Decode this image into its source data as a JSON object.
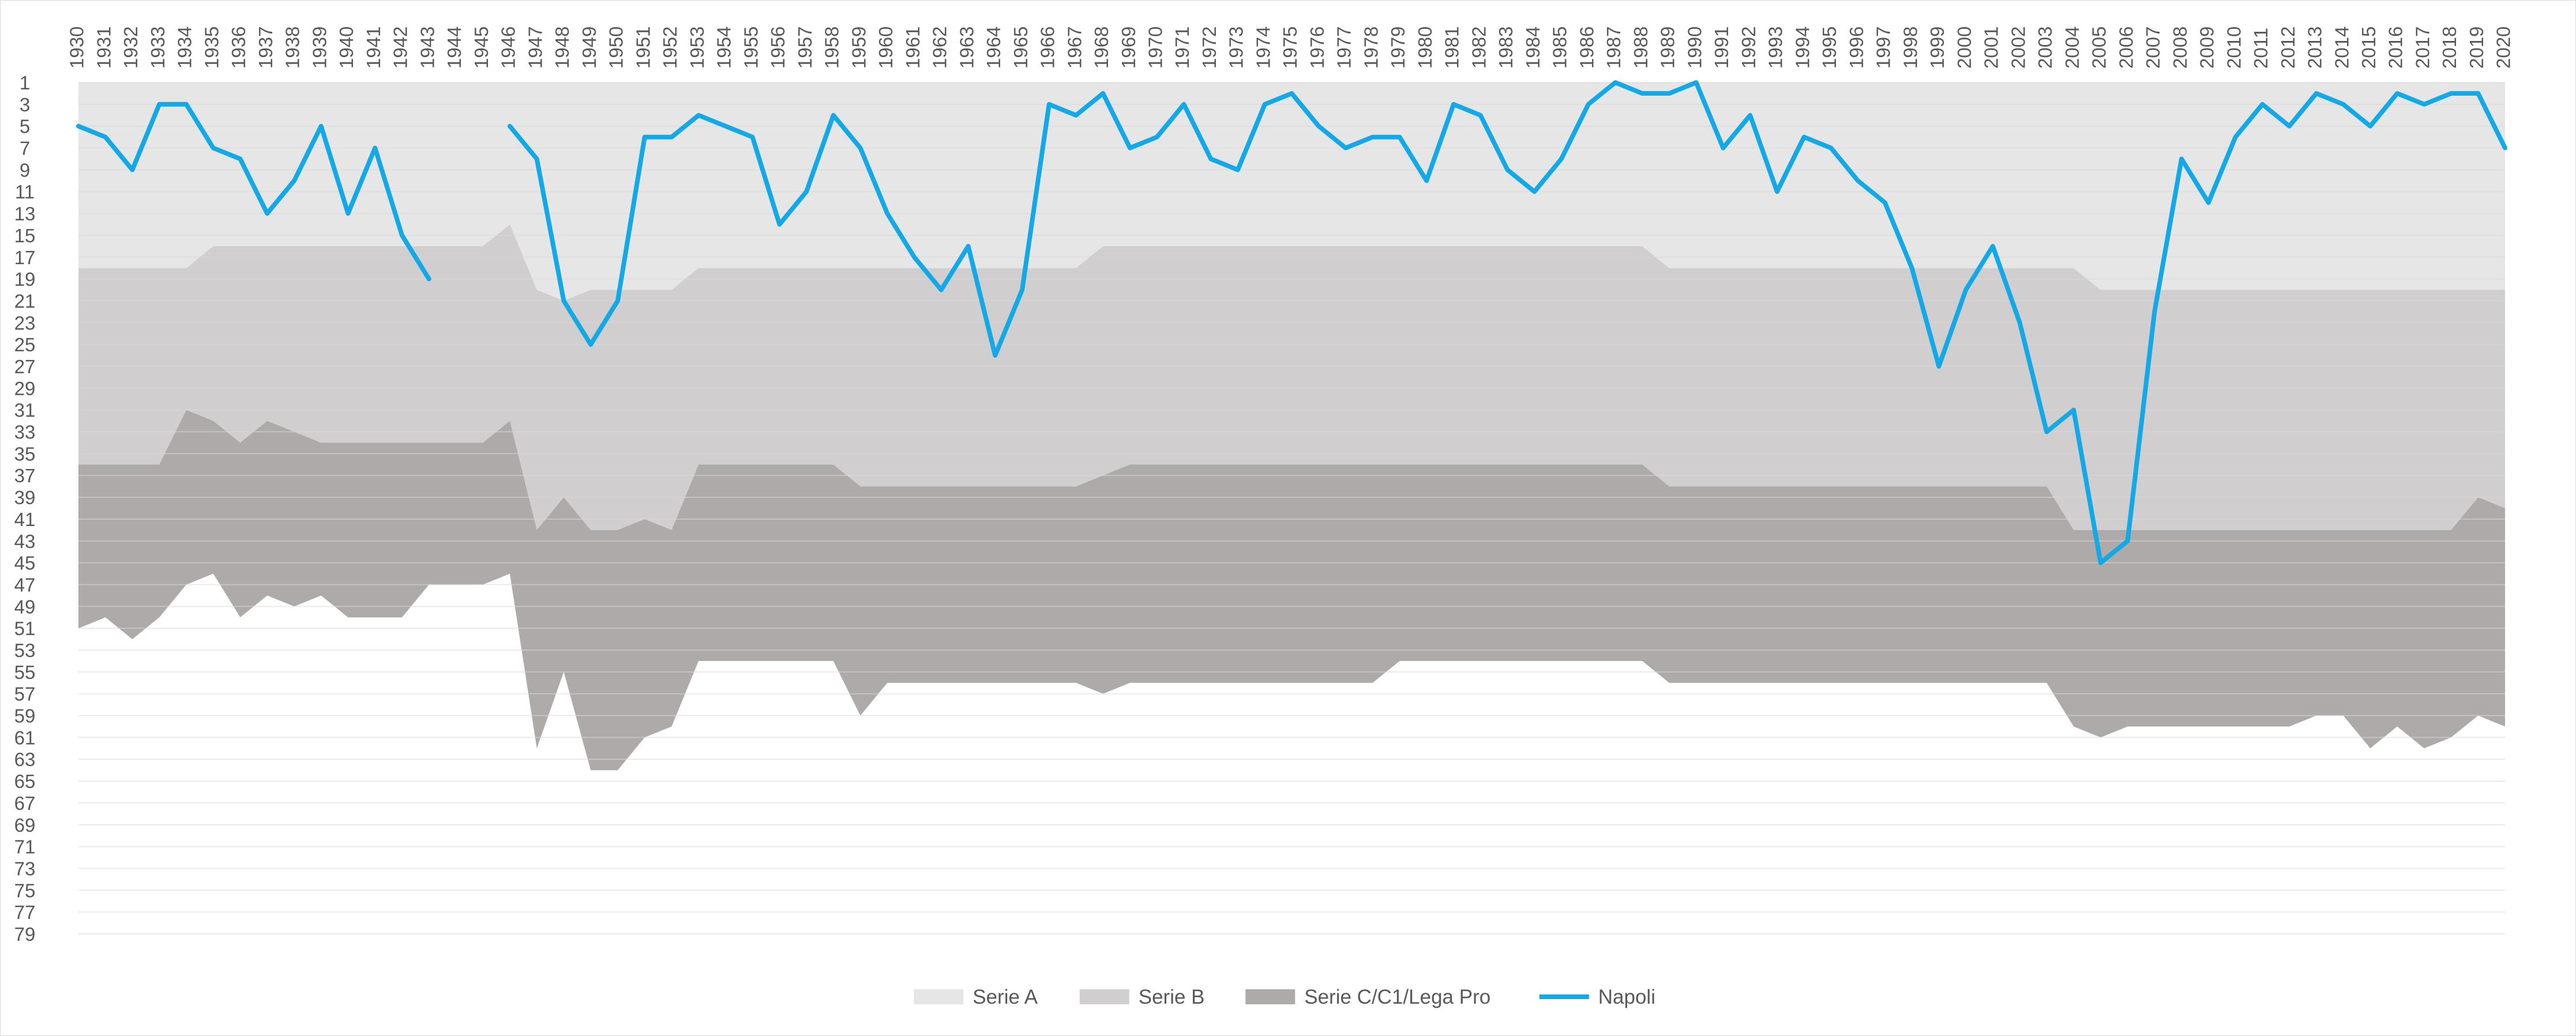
{
  "chart_data": {
    "type": "area",
    "title": "",
    "xlabel": "",
    "ylabel": "",
    "y_axis_inverted": true,
    "ylim": [
      1,
      79
    ],
    "y_ticks": [
      1,
      3,
      5,
      7,
      9,
      11,
      13,
      15,
      17,
      19,
      21,
      23,
      25,
      27,
      29,
      31,
      33,
      35,
      37,
      39,
      41,
      43,
      45,
      47,
      49,
      51,
      53,
      55,
      57,
      59,
      61,
      63,
      65,
      67,
      69,
      71,
      73,
      75,
      77,
      79
    ],
    "gridlines": true,
    "legend_position": "bottom",
    "x": [
      "1930",
      "1931",
      "1932",
      "1933",
      "1934",
      "1935",
      "1936",
      "1937",
      "1938",
      "1939",
      "1940",
      "1941",
      "1942",
      "1943",
      "1944",
      "1945",
      "1946",
      "1947",
      "1948",
      "1949",
      "1950",
      "1951",
      "1952",
      "1953",
      "1954",
      "1955",
      "1956",
      "1957",
      "1958",
      "1959",
      "1960",
      "1961",
      "1962",
      "1963",
      "1964",
      "1965",
      "1966",
      "1967",
      "1968",
      "1969",
      "1970",
      "1971",
      "1972",
      "1973",
      "1974",
      "1975",
      "1976",
      "1977",
      "1978",
      "1979",
      "1980",
      "1981",
      "1982",
      "1983",
      "1984",
      "1985",
      "1986",
      "1987",
      "1988",
      "1989",
      "1990",
      "1991",
      "1992",
      "1993",
      "1994",
      "1995",
      "1996",
      "1997",
      "1998",
      "1999",
      "2000",
      "2001",
      "2002",
      "2003",
      "2004",
      "2005",
      "2006",
      "2007",
      "2008",
      "2009",
      "2010",
      "2011",
      "2012",
      "2013",
      "2014",
      "2015",
      "2016",
      "2017",
      "2018",
      "2019",
      "2020"
    ],
    "series": [
      {
        "name": "Serie A",
        "kind": "area",
        "color": "#e7e6e6",
        "values": [
          18,
          18,
          18,
          18,
          18,
          16,
          16,
          16,
          16,
          16,
          16,
          16,
          16,
          16,
          16,
          16,
          14,
          20,
          21,
          20,
          20,
          20,
          20,
          18,
          18,
          18,
          18,
          18,
          18,
          18,
          18,
          18,
          18,
          18,
          18,
          18,
          18,
          18,
          16,
          16,
          16,
          16,
          16,
          16,
          16,
          16,
          16,
          16,
          16,
          16,
          16,
          16,
          16,
          16,
          16,
          16,
          16,
          16,
          16,
          18,
          18,
          18,
          18,
          18,
          18,
          18,
          18,
          18,
          18,
          18,
          18,
          18,
          18,
          18,
          18,
          20,
          20,
          20,
          20,
          20,
          20,
          20,
          20,
          20,
          20,
          20,
          20,
          20,
          20,
          20,
          20
        ]
      },
      {
        "name": "Serie B",
        "kind": "area",
        "color": "#d0cece",
        "values": [
          36,
          36,
          36,
          36,
          31,
          32,
          34,
          32,
          33,
          34,
          34,
          34,
          34,
          34,
          34,
          34,
          32,
          42,
          39,
          42,
          42,
          41,
          42,
          36,
          36,
          36,
          36,
          36,
          36,
          38,
          38,
          38,
          38,
          38,
          38,
          38,
          38,
          38,
          37,
          36,
          36,
          36,
          36,
          36,
          36,
          36,
          36,
          36,
          36,
          36,
          36,
          36,
          36,
          36,
          36,
          36,
          36,
          36,
          36,
          38,
          38,
          38,
          38,
          38,
          38,
          38,
          38,
          38,
          38,
          38,
          38,
          38,
          38,
          38,
          42,
          42,
          42,
          42,
          42,
          42,
          42,
          42,
          42,
          42,
          42,
          42,
          42,
          42,
          42,
          39,
          40
        ]
      },
      {
        "name": "Serie C/C1/Lega Pro",
        "kind": "area",
        "color": "#aeaaaa",
        "values": [
          51,
          50,
          52,
          50,
          47,
          46,
          50,
          48,
          49,
          48,
          50,
          50,
          50,
          47,
          47,
          47,
          46,
          62,
          55,
          64,
          64,
          61,
          60,
          54,
          54,
          54,
          54,
          54,
          54,
          59,
          56,
          56,
          56,
          56,
          56,
          56,
          56,
          56,
          57,
          56,
          56,
          56,
          56,
          56,
          56,
          56,
          56,
          56,
          56,
          54,
          54,
          54,
          54,
          54,
          54,
          54,
          54,
          54,
          54,
          56,
          56,
          56,
          56,
          56,
          56,
          56,
          56,
          56,
          56,
          56,
          56,
          56,
          56,
          56,
          60,
          61,
          60,
          60,
          60,
          60,
          60,
          60,
          60,
          59,
          59,
          62,
          60,
          62,
          61,
          59,
          60
        ]
      },
      {
        "name": "Napoli",
        "kind": "line",
        "color": "#12a9e6",
        "values": [
          5,
          6,
          9,
          3,
          3,
          7,
          8,
          13,
          10,
          5,
          13,
          7,
          15,
          19,
          null,
          null,
          5,
          8,
          21,
          25,
          21,
          6,
          6,
          4,
          5,
          6,
          14,
          11,
          4,
          7,
          13,
          17,
          20,
          16,
          26,
          20,
          3,
          4,
          2,
          7,
          6,
          3,
          8,
          9,
          3,
          2,
          5,
          7,
          6,
          6,
          10,
          3,
          4,
          9,
          11,
          8,
          3,
          1,
          2,
          2,
          1,
          7,
          4,
          11,
          6,
          7,
          10,
          12,
          18,
          27,
          20,
          16,
          23,
          33,
          31,
          45,
          43,
          22,
          8,
          12,
          6,
          3,
          5,
          2,
          3,
          5,
          2,
          3,
          2,
          2,
          7
        ]
      }
    ]
  }
}
